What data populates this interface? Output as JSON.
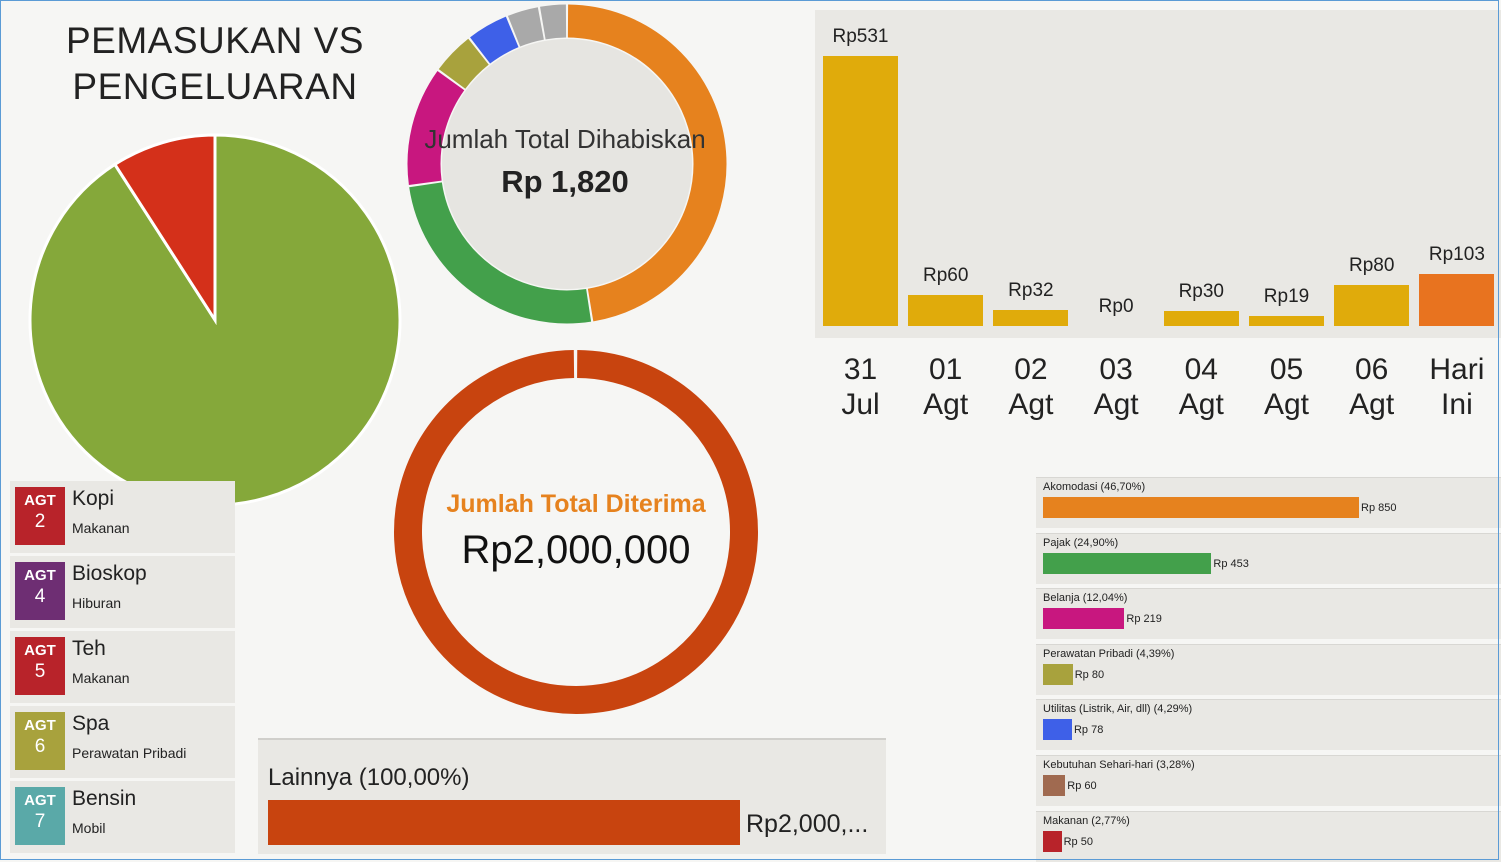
{
  "title_line1": "PEMASUKAN VS",
  "title_line2": "PENGELUARAN",
  "chart_data": [
    {
      "type": "pie",
      "labels": [
        "",
        ""
      ],
      "values": [
        90.9,
        9.1
      ],
      "colors": [
        "#85a83a",
        "#d4301a"
      ]
    },
    {
      "type": "pie",
      "title": "Jumlah Total Dihabiskan",
      "value_text": "Rp 1,820",
      "labels": [
        "Akomodasi",
        "Pajak",
        "Belanja",
        "Perawatan Pribadi",
        "Utilitas",
        "Kebutuhan Sehari-hari",
        "Makanan"
      ],
      "values": [
        46.7,
        24.9,
        12.04,
        4.39,
        4.29,
        3.28,
        2.77
      ],
      "colors": [
        "#e6821e",
        "#43a04b",
        "#c8177f",
        "#a8a23d",
        "#3e60e8",
        "#a9a9a9",
        "#a9a9a9"
      ]
    },
    {
      "type": "pie",
      "title": "Jumlah Total Diterima",
      "value_text": "Rp2,000,000",
      "labels": [
        "Lainnya"
      ],
      "values": [
        100
      ],
      "colors": [
        "#c8440f"
      ]
    },
    {
      "type": "bar",
      "categories": [
        [
          "31",
          "Jul"
        ],
        [
          "01",
          "Agt"
        ],
        [
          "02",
          "Agt"
        ],
        [
          "03",
          "Agt"
        ],
        [
          "04",
          "Agt"
        ],
        [
          "05",
          "Agt"
        ],
        [
          "06",
          "Agt"
        ],
        [
          "Hari",
          "Ini"
        ]
      ],
      "values": [
        531,
        60,
        32,
        0,
        30,
        19,
        80,
        103
      ],
      "value_labels": [
        "Rp531",
        "Rp60",
        "Rp32",
        "Rp0",
        "Rp30",
        "Rp19",
        "Rp80",
        "Rp103"
      ],
      "colors": [
        "#e0ab0b",
        "#e0ab0b",
        "#e0ab0b",
        "#e0ab0b",
        "#e0ab0b",
        "#e0ab0b",
        "#e0ab0b",
        "#e8731f"
      ],
      "ylim": [
        0,
        531
      ]
    },
    {
      "type": "bar",
      "orientation": "horizontal",
      "categories": [
        "Akomodasi (46,70%)",
        "Pajak (24,90%)",
        "Belanja (12,04%)",
        "Perawatan Pribadi (4,39%)",
        "Utilitas (Listrik, Air, dll) (4,29%)",
        "Kebutuhan Sehari-hari (3,28%)",
        "Makanan (2,77%)"
      ],
      "values": [
        850,
        453,
        219,
        80,
        78,
        60,
        50
      ],
      "value_labels": [
        "Rp 850",
        "Rp 453",
        "Rp 219",
        "Rp 80",
        "Rp 78",
        "Rp 60",
        "Rp 50"
      ],
      "colors": [
        "#e6821e",
        "#43a04b",
        "#c8177f",
        "#a8a23d",
        "#3e60e8",
        "#a06a50",
        "#b8232a"
      ],
      "xlim": [
        0,
        850
      ]
    },
    {
      "type": "bar",
      "orientation": "horizontal",
      "categories": [
        "Lainnya (100,00%)"
      ],
      "values": [
        2000000
      ],
      "value_labels": [
        "Rp2,000,..."
      ],
      "colors": [
        "#c8440f"
      ]
    }
  ],
  "transactions": [
    {
      "month": "AGT",
      "day": "2",
      "title": "Kopi",
      "category": "Makanan",
      "color": "#b8232a"
    },
    {
      "month": "AGT",
      "day": "4",
      "title": "Bioskop",
      "category": "Hiburan",
      "color": "#6e2e73"
    },
    {
      "month": "AGT",
      "day": "5",
      "title": "Teh",
      "category": "Makanan",
      "color": "#b8232a"
    },
    {
      "month": "AGT",
      "day": "6",
      "title": "Spa",
      "category": "Perawatan Pribadi",
      "color": "#a8a23d"
    },
    {
      "month": "AGT",
      "day": "7",
      "title": "Bensin",
      "category": "Mobil",
      "color": "#5aa9a8"
    }
  ]
}
